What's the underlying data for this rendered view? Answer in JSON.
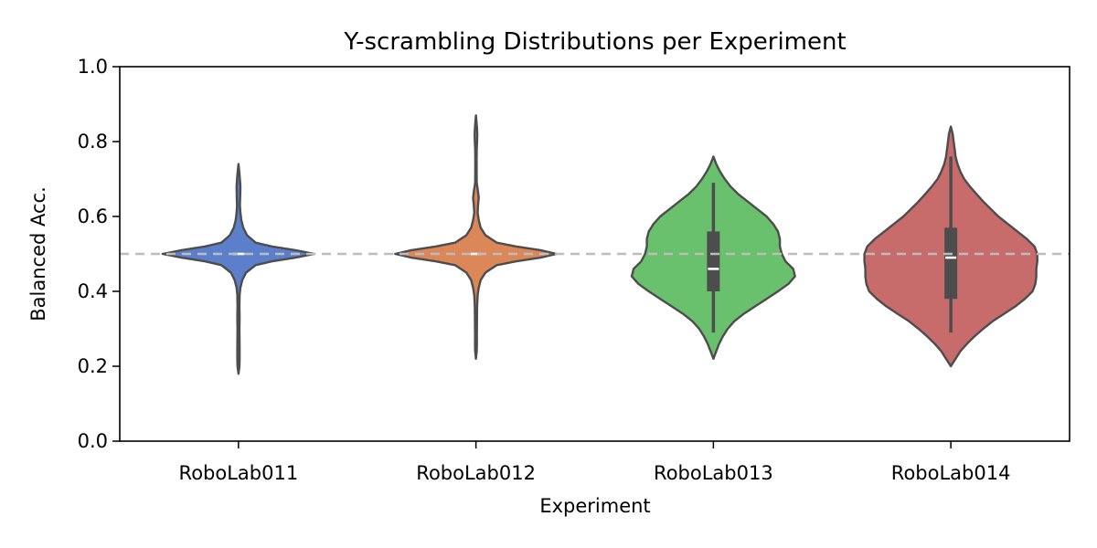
{
  "chart_data": {
    "type": "violin",
    "title": "Y-scrambling Distributions per Experiment",
    "xlabel": "Experiment",
    "ylabel": "Balanced Acc.",
    "ylim": [
      0.0,
      1.0
    ],
    "yticks": [
      0.0,
      0.2,
      0.4,
      0.6,
      0.8,
      1.0
    ],
    "ytick_labels": [
      "0.0",
      "0.2",
      "0.4",
      "0.6",
      "0.8",
      "1.0"
    ],
    "reference_line": 0.5,
    "grid": false,
    "legend": "none",
    "categories": [
      "RoboLab011",
      "RoboLab012",
      "RoboLab013",
      "RoboLab014"
    ],
    "series": [
      {
        "category": "RoboLab011",
        "color": "#5b7fcb",
        "median": 0.5,
        "q1": 0.5,
        "q3": 0.5,
        "whisker_low": 0.5,
        "whisker_high": 0.5,
        "profile": [
          [
            0.18,
            0.0
          ],
          [
            0.2,
            0.01
          ],
          [
            0.22,
            0.012
          ],
          [
            0.25,
            0.012
          ],
          [
            0.28,
            0.011
          ],
          [
            0.3,
            0.01
          ],
          [
            0.33,
            0.012
          ],
          [
            0.36,
            0.01
          ],
          [
            0.39,
            0.012
          ],
          [
            0.41,
            0.02
          ],
          [
            0.43,
            0.04
          ],
          [
            0.45,
            0.08
          ],
          [
            0.47,
            0.18
          ],
          [
            0.48,
            0.35
          ],
          [
            0.49,
            0.6
          ],
          [
            0.5,
            0.8
          ],
          [
            0.51,
            0.6
          ],
          [
            0.52,
            0.35
          ],
          [
            0.53,
            0.18
          ],
          [
            0.55,
            0.09
          ],
          [
            0.57,
            0.05
          ],
          [
            0.59,
            0.03
          ],
          [
            0.61,
            0.02
          ],
          [
            0.63,
            0.015
          ],
          [
            0.65,
            0.018
          ],
          [
            0.68,
            0.02
          ],
          [
            0.7,
            0.015
          ],
          [
            0.72,
            0.008
          ],
          [
            0.74,
            0.0
          ]
        ]
      },
      {
        "category": "RoboLab012",
        "color": "#db8758",
        "median": 0.5,
        "q1": 0.5,
        "q3": 0.5,
        "whisker_low": 0.5,
        "whisker_high": 0.5,
        "profile": [
          [
            0.22,
            0.0
          ],
          [
            0.24,
            0.008
          ],
          [
            0.26,
            0.01
          ],
          [
            0.28,
            0.009
          ],
          [
            0.3,
            0.01
          ],
          [
            0.33,
            0.011
          ],
          [
            0.36,
            0.012
          ],
          [
            0.39,
            0.018
          ],
          [
            0.41,
            0.03
          ],
          [
            0.43,
            0.05
          ],
          [
            0.45,
            0.1
          ],
          [
            0.47,
            0.22
          ],
          [
            0.48,
            0.42
          ],
          [
            0.49,
            0.68
          ],
          [
            0.5,
            0.85
          ],
          [
            0.51,
            0.68
          ],
          [
            0.52,
            0.42
          ],
          [
            0.53,
            0.22
          ],
          [
            0.55,
            0.1
          ],
          [
            0.57,
            0.05
          ],
          [
            0.59,
            0.03
          ],
          [
            0.61,
            0.018
          ],
          [
            0.63,
            0.022
          ],
          [
            0.65,
            0.03
          ],
          [
            0.67,
            0.02
          ],
          [
            0.69,
            0.008
          ],
          [
            0.72,
            0.007
          ],
          [
            0.75,
            0.007
          ],
          [
            0.78,
            0.008
          ],
          [
            0.8,
            0.012
          ],
          [
            0.82,
            0.014
          ],
          [
            0.84,
            0.01
          ],
          [
            0.87,
            0.0
          ]
        ]
      },
      {
        "category": "RoboLab013",
        "color": "#6ac16d",
        "median": 0.46,
        "q1": 0.4,
        "q3": 0.56,
        "whisker_low": 0.29,
        "whisker_high": 0.69,
        "profile": [
          [
            0.22,
            0.0
          ],
          [
            0.24,
            0.03
          ],
          [
            0.26,
            0.06
          ],
          [
            0.28,
            0.1
          ],
          [
            0.3,
            0.15
          ],
          [
            0.32,
            0.22
          ],
          [
            0.34,
            0.32
          ],
          [
            0.36,
            0.44
          ],
          [
            0.38,
            0.56
          ],
          [
            0.4,
            0.68
          ],
          [
            0.42,
            0.79
          ],
          [
            0.44,
            0.86
          ],
          [
            0.46,
            0.84
          ],
          [
            0.48,
            0.76
          ],
          [
            0.5,
            0.72
          ],
          [
            0.52,
            0.7
          ],
          [
            0.54,
            0.7
          ],
          [
            0.56,
            0.68
          ],
          [
            0.58,
            0.63
          ],
          [
            0.6,
            0.56
          ],
          [
            0.62,
            0.46
          ],
          [
            0.64,
            0.36
          ],
          [
            0.66,
            0.26
          ],
          [
            0.68,
            0.18
          ],
          [
            0.7,
            0.12
          ],
          [
            0.72,
            0.07
          ],
          [
            0.74,
            0.03
          ],
          [
            0.76,
            0.0
          ]
        ]
      },
      {
        "category": "RoboLab014",
        "color": "#c76b6b",
        "median": 0.49,
        "q1": 0.38,
        "q3": 0.57,
        "whisker_low": 0.29,
        "whisker_high": 0.76,
        "profile": [
          [
            0.2,
            0.0
          ],
          [
            0.22,
            0.05
          ],
          [
            0.24,
            0.1
          ],
          [
            0.26,
            0.17
          ],
          [
            0.28,
            0.25
          ],
          [
            0.3,
            0.34
          ],
          [
            0.32,
            0.44
          ],
          [
            0.34,
            0.56
          ],
          [
            0.36,
            0.68
          ],
          [
            0.38,
            0.78
          ],
          [
            0.4,
            0.86
          ],
          [
            0.42,
            0.89
          ],
          [
            0.44,
            0.9
          ],
          [
            0.46,
            0.9
          ],
          [
            0.48,
            0.91
          ],
          [
            0.5,
            0.91
          ],
          [
            0.52,
            0.88
          ],
          [
            0.54,
            0.8
          ],
          [
            0.56,
            0.7
          ],
          [
            0.58,
            0.6
          ],
          [
            0.6,
            0.5
          ],
          [
            0.62,
            0.42
          ],
          [
            0.64,
            0.34
          ],
          [
            0.66,
            0.27
          ],
          [
            0.68,
            0.2
          ],
          [
            0.7,
            0.14
          ],
          [
            0.72,
            0.1
          ],
          [
            0.74,
            0.07
          ],
          [
            0.76,
            0.05
          ],
          [
            0.78,
            0.04
          ],
          [
            0.8,
            0.03
          ],
          [
            0.82,
            0.02
          ],
          [
            0.84,
            0.0
          ]
        ]
      }
    ]
  }
}
